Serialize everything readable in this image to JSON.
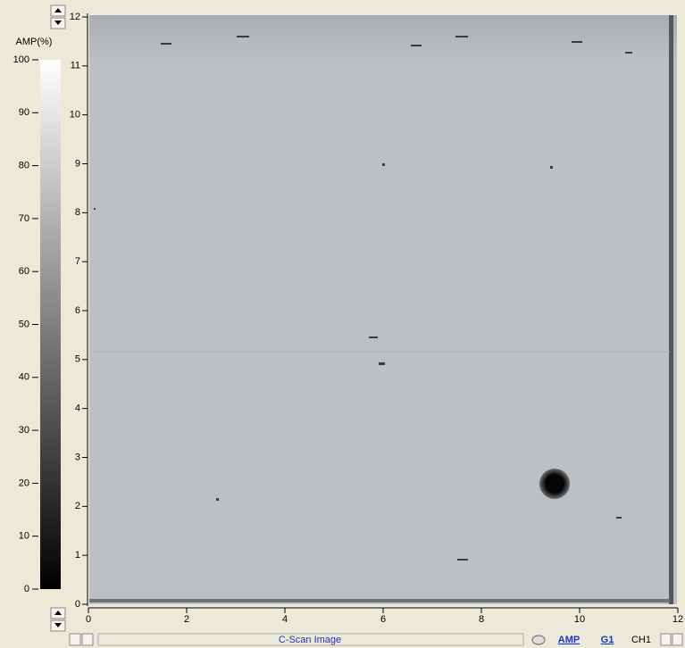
{
  "colorbar": {
    "label": "AMP(%)",
    "lim": [
      0,
      100
    ],
    "ticks": [
      0,
      10,
      20,
      30,
      40,
      50,
      60,
      70,
      80,
      90,
      100
    ]
  },
  "x_axis": {
    "lim": [
      0,
      12
    ],
    "ticks": [
      0,
      2,
      4,
      6,
      8,
      10,
      12
    ]
  },
  "y_axis": {
    "lim": [
      0,
      12
    ],
    "ticks": [
      0,
      1,
      2,
      3,
      4,
      5,
      6,
      7,
      8,
      9,
      10,
      11,
      12
    ]
  },
  "status_bar": {
    "title": "C-Scan Image",
    "buttons": [
      "AMP",
      "G1",
      "CH1"
    ]
  }
}
